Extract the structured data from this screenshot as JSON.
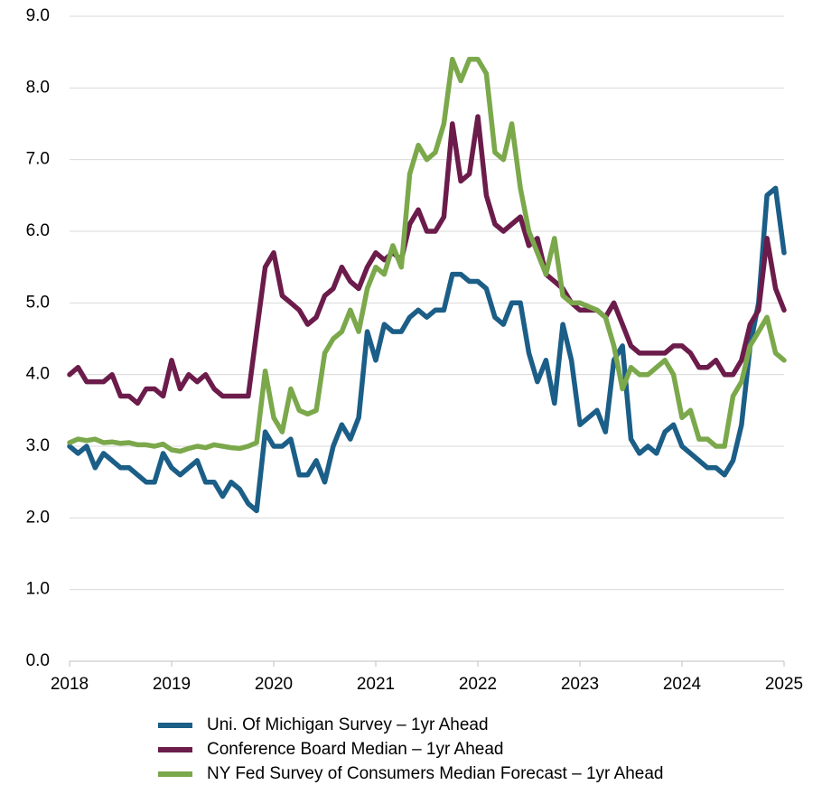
{
  "chart_data": {
    "type": "line",
    "x": [
      2018,
      2018.083,
      2018.167,
      2018.25,
      2018.333,
      2018.417,
      2018.5,
      2018.583,
      2018.667,
      2018.75,
      2018.833,
      2018.917,
      2019,
      2019.083,
      2019.167,
      2019.25,
      2019.333,
      2019.417,
      2019.5,
      2019.583,
      2019.667,
      2019.75,
      2019.833,
      2019.917,
      2020,
      2020.083,
      2020.167,
      2020.25,
      2020.333,
      2020.417,
      2020.5,
      2020.583,
      2020.667,
      2020.75,
      2020.833,
      2020.917,
      2021,
      2021.083,
      2021.167,
      2021.25,
      2021.333,
      2021.417,
      2021.5,
      2021.583,
      2021.667,
      2021.75,
      2021.833,
      2021.917,
      2022,
      2022.083,
      2022.167,
      2022.25,
      2022.333,
      2022.417,
      2022.5,
      2022.583,
      2022.667,
      2022.75,
      2022.833,
      2022.917,
      2023,
      2023.083,
      2023.167,
      2023.25,
      2023.333,
      2023.417,
      2023.5,
      2023.583,
      2023.667,
      2023.75,
      2023.833,
      2023.917,
      2024,
      2024.083,
      2024.167,
      2024.25,
      2024.333,
      2024.417,
      2024.5,
      2024.583,
      2024.667,
      2024.75,
      2024.833,
      2024.917,
      2025
    ],
    "series": [
      {
        "name": "Uni. Of Michigan Survey – 1yr Ahead",
        "color": "#1b5e87",
        "values": [
          3.0,
          2.9,
          3.0,
          2.7,
          2.9,
          2.8,
          2.7,
          2.7,
          2.6,
          2.5,
          2.5,
          2.9,
          2.7,
          2.6,
          2.7,
          2.8,
          2.5,
          2.5,
          2.3,
          2.5,
          2.4,
          2.2,
          2.1,
          3.2,
          3.0,
          3.0,
          3.1,
          2.6,
          2.6,
          2.8,
          2.5,
          3.0,
          3.3,
          3.1,
          3.4,
          4.6,
          4.2,
          4.7,
          4.6,
          4.6,
          4.8,
          4.9,
          4.8,
          4.9,
          4.9,
          5.4,
          5.4,
          5.3,
          5.3,
          5.2,
          4.8,
          4.7,
          5.0,
          5.0,
          4.3,
          3.9,
          4.2,
          3.6,
          4.7,
          4.2,
          3.3,
          3.4,
          3.5,
          3.2,
          4.2,
          4.4,
          3.1,
          2.9,
          3.0,
          2.9,
          3.2,
          3.3,
          3.0,
          2.9,
          2.8,
          2.7,
          2.7,
          2.6,
          2.8,
          3.3,
          4.4,
          5.0,
          6.5,
          6.6,
          5.7
        ]
      },
      {
        "name": "Conference Board Median – 1yr Ahead",
        "color": "#6b1c4b",
        "values": [
          4.0,
          4.1,
          3.9,
          3.9,
          3.9,
          4.0,
          3.7,
          3.7,
          3.6,
          3.8,
          3.8,
          3.7,
          4.2,
          3.8,
          4.0,
          3.9,
          4.0,
          3.8,
          3.7,
          3.7,
          3.7,
          3.7,
          4.6,
          5.5,
          5.7,
          5.1,
          5.0,
          4.9,
          4.7,
          4.8,
          5.1,
          5.2,
          5.5,
          5.3,
          5.2,
          5.5,
          5.7,
          5.6,
          5.7,
          5.6,
          6.1,
          6.3,
          6.0,
          6.0,
          6.2,
          7.5,
          6.7,
          6.8,
          7.6,
          6.5,
          6.1,
          6.0,
          6.1,
          6.2,
          5.8,
          5.9,
          5.4,
          5.3,
          5.2,
          5.0,
          4.9,
          4.9,
          4.9,
          4.8,
          5.0,
          4.7,
          4.4,
          4.3,
          4.3,
          4.3,
          4.3,
          4.4,
          4.4,
          4.3,
          4.1,
          4.1,
          4.2,
          4.0,
          4.0,
          4.2,
          4.7,
          4.9,
          5.9,
          5.2,
          4.9
        ]
      },
      {
        "name": "NY Fed Survey of Consumers Median Forecast – 1yr Ahead",
        "color": "#7ba84b",
        "values": [
          3.05,
          3.1,
          3.08,
          3.1,
          3.05,
          3.06,
          3.04,
          3.05,
          3.02,
          3.02,
          3.0,
          3.03,
          2.95,
          2.93,
          2.97,
          3.0,
          2.98,
          3.02,
          3.0,
          2.98,
          2.97,
          3.0,
          3.05,
          4.05,
          3.4,
          3.2,
          3.8,
          3.5,
          3.45,
          3.5,
          4.3,
          4.5,
          4.6,
          4.9,
          4.6,
          5.2,
          5.5,
          5.4,
          5.8,
          5.5,
          6.8,
          7.2,
          7.0,
          7.1,
          7.5,
          8.4,
          8.1,
          8.4,
          8.4,
          8.2,
          7.1,
          7.0,
          7.5,
          6.6,
          6.0,
          5.7,
          5.4,
          5.9,
          5.1,
          5.0,
          5.0,
          4.95,
          4.9,
          4.8,
          4.4,
          3.8,
          4.1,
          4.0,
          4.0,
          4.1,
          4.2,
          4.0,
          3.4,
          3.5,
          3.1,
          3.1,
          3.0,
          3.0,
          3.7,
          3.9,
          4.4,
          4.6,
          4.8,
          4.3,
          4.2
        ]
      }
    ],
    "xlim": [
      2018,
      2025
    ],
    "xticks": [
      2018,
      2019,
      2020,
      2021,
      2022,
      2023,
      2024,
      2025
    ],
    "ylim": [
      0,
      9
    ],
    "yticks": [
      {
        "value": 0,
        "label": "0.0"
      },
      {
        "value": 1,
        "label": "1.0"
      },
      {
        "value": 2,
        "label": "2.0"
      },
      {
        "value": 3,
        "label": "3.0"
      },
      {
        "value": 4,
        "label": "4.0"
      },
      {
        "value": 5,
        "label": "5.0"
      },
      {
        "value": 6,
        "label": "6.0"
      },
      {
        "value": 7,
        "label": "7.0"
      },
      {
        "value": 8,
        "label": "8.0"
      },
      {
        "value": 9,
        "label": "9.0"
      }
    ],
    "grid": true,
    "legend": "bottom"
  }
}
